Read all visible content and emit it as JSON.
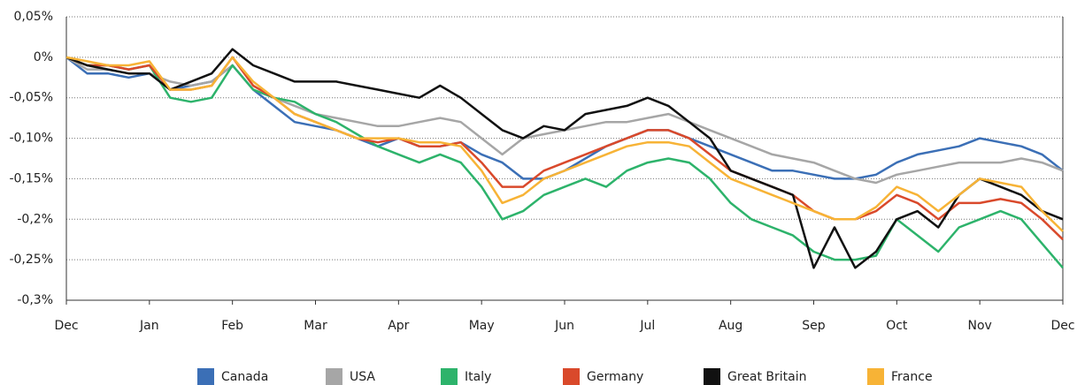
{
  "chart_data": {
    "type": "line",
    "categories": [
      "Dec",
      null,
      null,
      null,
      "Jan",
      null,
      null,
      null,
      "Feb",
      null,
      null,
      null,
      "Mar",
      null,
      null,
      null,
      "Apr",
      null,
      null,
      null,
      "May",
      null,
      null,
      null,
      "Jun",
      null,
      null,
      null,
      "Jul",
      null,
      null,
      null,
      "Aug",
      null,
      null,
      null,
      "Sep",
      null,
      null,
      null,
      "Oct",
      null,
      null,
      null,
      "Nov",
      null,
      null,
      null,
      "Dec"
    ],
    "series": [
      {
        "name": "Canada",
        "color": "#3b6fb6",
        "values": [
          0,
          -0.02,
          -0.02,
          -0.025,
          -0.02,
          -0.04,
          -0.035,
          -0.03,
          -0.01,
          -0.04,
          -0.06,
          -0.08,
          -0.085,
          -0.09,
          -0.1,
          -0.11,
          -0.1,
          -0.11,
          -0.11,
          -0.105,
          -0.12,
          -0.13,
          -0.15,
          -0.15,
          -0.14,
          -0.125,
          -0.11,
          -0.1,
          -0.09,
          -0.09,
          -0.1,
          -0.11,
          -0.12,
          -0.13,
          -0.14,
          -0.14,
          -0.145,
          -0.15,
          -0.15,
          -0.145,
          -0.13,
          -0.12,
          -0.115,
          -0.11,
          -0.1,
          -0.105,
          -0.11,
          -0.12,
          -0.14
        ]
      },
      {
        "name": "USA",
        "color": "#a6a6a6",
        "values": [
          0,
          -0.015,
          -0.015,
          -0.02,
          -0.02,
          -0.03,
          -0.035,
          -0.03,
          -0.01,
          -0.04,
          -0.05,
          -0.06,
          -0.07,
          -0.075,
          -0.08,
          -0.085,
          -0.085,
          -0.08,
          -0.075,
          -0.08,
          -0.1,
          -0.12,
          -0.1,
          -0.095,
          -0.09,
          -0.085,
          -0.08,
          -0.08,
          -0.075,
          -0.07,
          -0.08,
          -0.09,
          -0.1,
          -0.11,
          -0.12,
          -0.125,
          -0.13,
          -0.14,
          -0.15,
          -0.155,
          -0.145,
          -0.14,
          -0.135,
          -0.13,
          -0.13,
          -0.13,
          -0.125,
          -0.13,
          -0.14
        ]
      },
      {
        "name": "Italy",
        "color": "#2db36b",
        "values": [
          0,
          -0.01,
          -0.01,
          -0.015,
          -0.01,
          -0.05,
          -0.055,
          -0.05,
          -0.01,
          -0.04,
          -0.05,
          -0.055,
          -0.07,
          -0.08,
          -0.095,
          -0.11,
          -0.12,
          -0.13,
          -0.12,
          -0.13,
          -0.16,
          -0.2,
          -0.19,
          -0.17,
          -0.16,
          -0.15,
          -0.16,
          -0.14,
          -0.13,
          -0.125,
          -0.13,
          -0.15,
          -0.18,
          -0.2,
          -0.21,
          -0.22,
          -0.24,
          -0.25,
          -0.25,
          -0.245,
          -0.2,
          -0.22,
          -0.24,
          -0.21,
          -0.2,
          -0.19,
          -0.2,
          -0.23,
          -0.26
        ]
      },
      {
        "name": "Germany",
        "color": "#d9492b",
        "values": [
          0,
          -0.01,
          -0.01,
          -0.015,
          -0.01,
          -0.04,
          -0.04,
          -0.035,
          0,
          -0.035,
          -0.05,
          -0.07,
          -0.08,
          -0.09,
          -0.1,
          -0.105,
          -0.1,
          -0.11,
          -0.11,
          -0.105,
          -0.13,
          -0.16,
          -0.16,
          -0.14,
          -0.13,
          -0.12,
          -0.11,
          -0.1,
          -0.09,
          -0.09,
          -0.1,
          -0.12,
          -0.14,
          -0.15,
          -0.16,
          -0.17,
          -0.19,
          -0.2,
          -0.2,
          -0.19,
          -0.17,
          -0.18,
          -0.2,
          -0.18,
          -0.18,
          -0.175,
          -0.18,
          -0.2,
          -0.225
        ]
      },
      {
        "name": "Great Britain",
        "color": "#111111",
        "values": [
          0,
          -0.01,
          -0.015,
          -0.02,
          -0.02,
          -0.04,
          -0.03,
          -0.02,
          0.01,
          -0.01,
          -0.02,
          -0.03,
          -0.03,
          -0.03,
          -0.035,
          -0.04,
          -0.045,
          -0.05,
          -0.035,
          -0.05,
          -0.07,
          -0.09,
          -0.1,
          -0.085,
          -0.09,
          -0.07,
          -0.065,
          -0.06,
          -0.05,
          -0.06,
          -0.08,
          -0.1,
          -0.14,
          -0.15,
          -0.16,
          -0.17,
          -0.26,
          -0.21,
          -0.26,
          -0.24,
          -0.2,
          -0.19,
          -0.21,
          -0.17,
          -0.15,
          -0.16,
          -0.17,
          -0.19,
          -0.2
        ]
      },
      {
        "name": "France",
        "color": "#f7b336",
        "values": [
          0,
          -0.005,
          -0.01,
          -0.01,
          -0.005,
          -0.04,
          -0.04,
          -0.035,
          0,
          -0.03,
          -0.05,
          -0.07,
          -0.08,
          -0.09,
          -0.1,
          -0.1,
          -0.1,
          -0.105,
          -0.105,
          -0.11,
          -0.14,
          -0.18,
          -0.17,
          -0.15,
          -0.14,
          -0.13,
          -0.12,
          -0.11,
          -0.105,
          -0.105,
          -0.11,
          -0.13,
          -0.15,
          -0.16,
          -0.17,
          -0.18,
          -0.19,
          -0.2,
          -0.2,
          -0.185,
          -0.16,
          -0.17,
          -0.19,
          -0.17,
          -0.15,
          -0.155,
          -0.16,
          -0.19,
          -0.215
        ]
      }
    ],
    "ylim": [
      -0.3,
      0.05
    ],
    "yticks": [
      {
        "value": -0.3,
        "label": "-0,3%"
      },
      {
        "value": -0.25,
        "label": "-0,25%"
      },
      {
        "value": -0.2,
        "label": "-0,2%"
      },
      {
        "value": -0.15,
        "label": "-0,15%"
      },
      {
        "value": -0.1,
        "label": "-0,10%"
      },
      {
        "value": -0.05,
        "label": "-0,05%"
      },
      {
        "value": 0,
        "label": "0%"
      },
      {
        "value": 0.05,
        "label": "0,05%"
      }
    ],
    "grid": true
  }
}
